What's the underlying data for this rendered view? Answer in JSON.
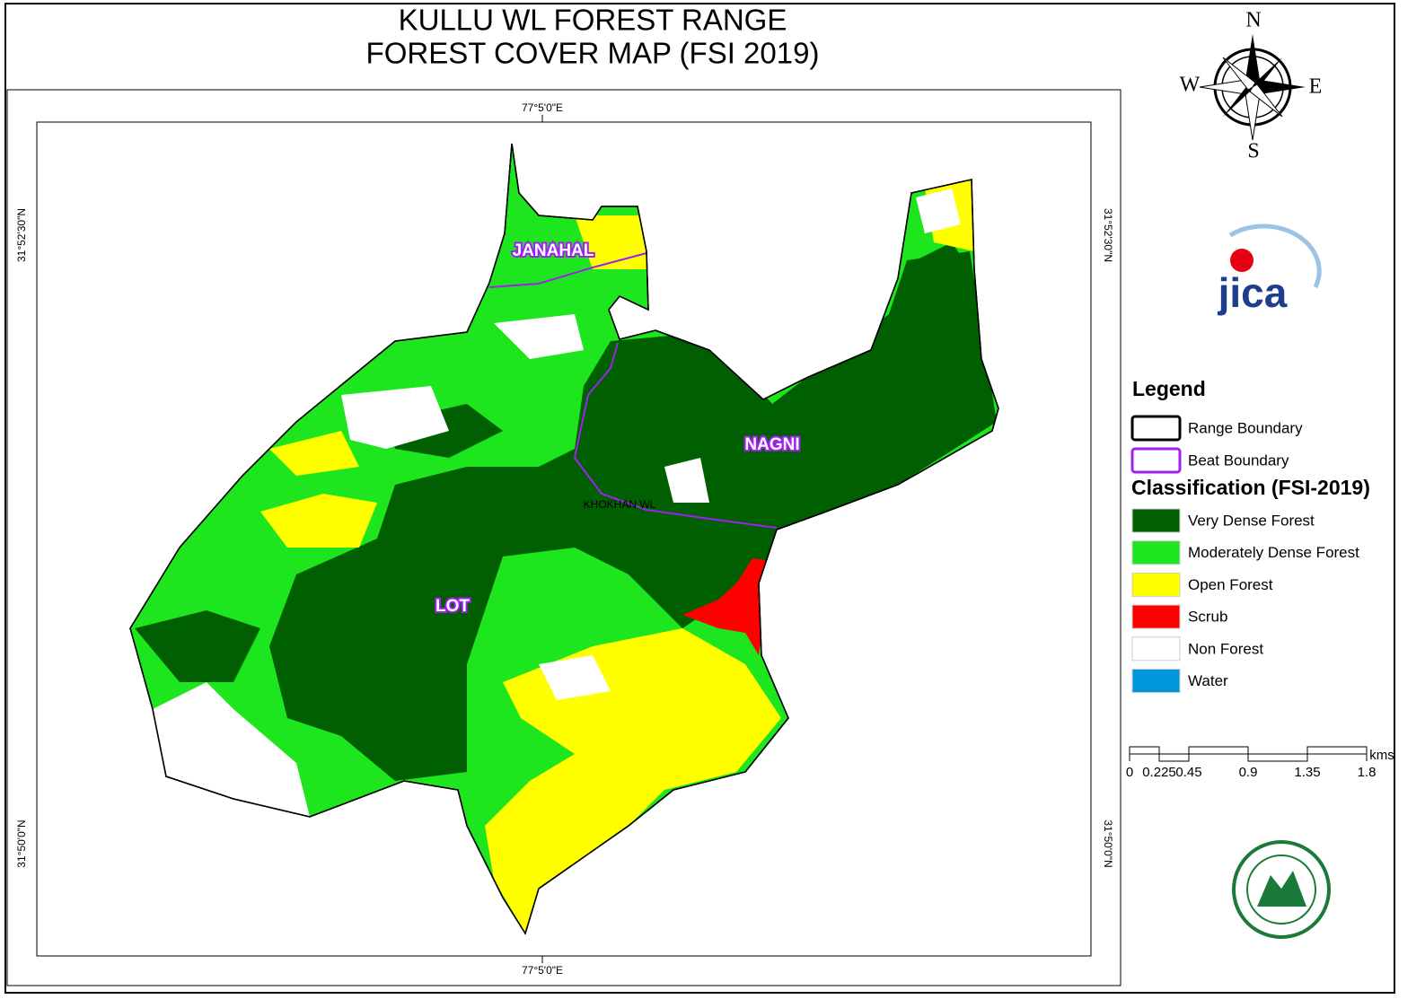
{
  "title": [
    "KULLU WL FOREST RANGE",
    "FOREST COVER MAP (FSI 2019)"
  ],
  "compass": {
    "n": "N",
    "e": "E",
    "s": "S",
    "w": "W"
  },
  "graticule": {
    "top": "77°5'0\"E",
    "bottom": "77°5'0\"E",
    "left_north": "31°52'30\"N",
    "right_north": "31°52'30\"N",
    "left_south": "31°50'0\"N",
    "right_south": "31°50'0\"N"
  },
  "places": [
    "JANAHAL",
    "NAGNI",
    "LOT",
    "KHOKHAN WL"
  ],
  "logo": "jica",
  "legend": {
    "title": "Legend",
    "boundaries": [
      {
        "label": "Range Boundary",
        "color": "#000000"
      },
      {
        "label": "Beat Boundary",
        "color": "#a020f0"
      }
    ],
    "classification_title": "Classification (FSI-2019)",
    "classes": [
      {
        "label": "Very Dense Forest",
        "color": "#005f00"
      },
      {
        "label": "Moderately Dense Forest",
        "color": "#1ee61e"
      },
      {
        "label": "Open Forest",
        "color": "#ffff00"
      },
      {
        "label": "Scrub",
        "color": "#ff0000"
      },
      {
        "label": "Non Forest",
        "color": "#ffffff"
      },
      {
        "label": "Water",
        "color": "#0096dc"
      }
    ]
  },
  "scale": {
    "ticks": [
      0,
      0.225,
      0.45,
      0.9,
      1.35,
      1.8
    ],
    "unit": "kms"
  }
}
